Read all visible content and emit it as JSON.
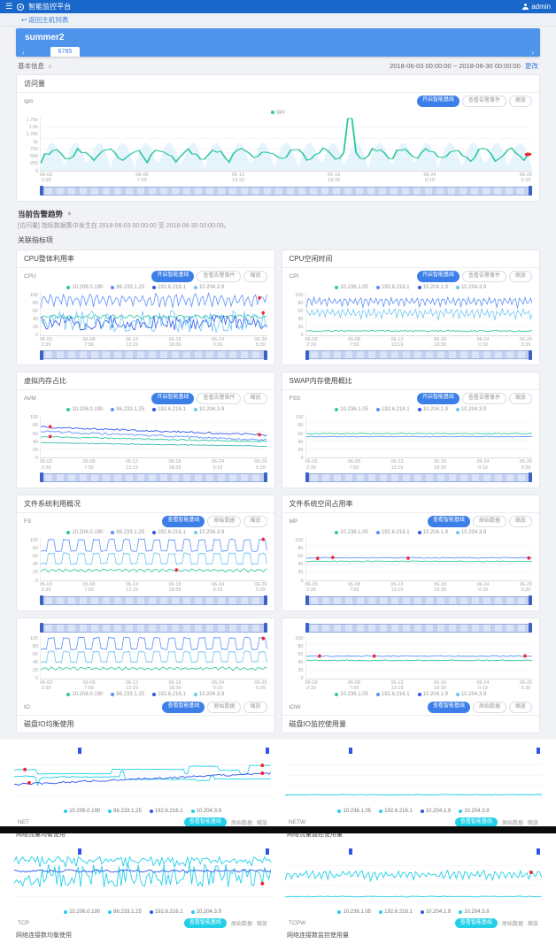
{
  "header": {
    "app_title": "智能监控平台",
    "user": "admin",
    "menu_icon": "☰"
  },
  "breadcrumb": {
    "back_icon": "↩",
    "back_label": "返回主机列表"
  },
  "host_card": {
    "title": "summer2",
    "tab": "6785",
    "arrow_left": "‹",
    "arrow_right": "›"
  },
  "info_row": {
    "label": "基本信息",
    "caret": "∨",
    "date_range": "2018-06-03 00:00:00 ~ 2018-06-30 00:00:00",
    "change_label": "更改"
  },
  "axis": {
    "x_ticks": [
      "06-03\n2:39",
      "06-08\n7:59",
      "06-13\n13:19",
      "06-18\n18:39",
      "06-24\n0:19",
      "06-29\n5:39"
    ],
    "y_ticks_pct": [
      "100",
      "80",
      "60",
      "40",
      "20",
      "0"
    ]
  },
  "main_chart": {
    "title": "访问量",
    "unit": "qps",
    "buttons": [
      "开启智能基线",
      "查看告警事件",
      "缩放"
    ],
    "legend": [
      {
        "name": "qps",
        "color": "#2ec7a0"
      }
    ],
    "y_ticks": [
      "1.75k",
      "1.5k",
      "1.25k",
      "1k",
      "750",
      "500",
      "250",
      "0"
    ],
    "series": [
      {
        "c": "#9ad2f5",
        "t": "wave",
        "b": 0.97,
        "a": 0.5,
        "f": 0.55,
        "n": 0,
        "area": true,
        "op": 0.25,
        "seed": 3
      },
      {
        "c": "#2ec7a0",
        "t": "wave",
        "b": 0.87,
        "a": 0.2,
        "f": 0.48,
        "n": 0.1,
        "spike": 0.63,
        "w": 1,
        "r": [
          0.995
        ],
        "seed": 8
      }
    ]
  },
  "alert_section": {
    "title": "当前告警趋势",
    "caret": "∧",
    "note": "[访问量] 指标数据集中发生在 2018-06-03 00:00:00 至 2018-06-30 00:00:00。",
    "related_label": "关联指标项"
  },
  "panels": [
    {
      "title": "CPU整体利用率",
      "label": "CPU",
      "flipped": false,
      "buttons": [
        "开启智能基线",
        "查看告警事件",
        "缩放"
      ],
      "legend": [
        {
          "name": "10.206.0.190",
          "color": "#2ec7a0"
        },
        {
          "name": "86.233.1.25",
          "color": "#5b8ff9"
        },
        {
          "name": "192.6.216.1",
          "color": "#2f54eb"
        },
        {
          "name": "10.204.3.9",
          "color": "#6ec6f2"
        }
      ],
      "series": [
        {
          "c": "#5b8ff9",
          "t": "wave",
          "b": 0.42,
          "a": 0.28,
          "f": 0.9,
          "n": 0.12,
          "r": [
            0.97
          ],
          "seed": 11
        },
        {
          "c": "#2ec7a0",
          "t": "wave",
          "b": 0.64,
          "a": 0.07,
          "f": 0.7,
          "n": 0.05,
          "seed": 21
        },
        {
          "c": "#2f54eb",
          "t": "noise",
          "b": 0.88,
          "a": 0.35,
          "seed": 31
        },
        {
          "c": "#6ec6f2",
          "t": "noise",
          "b": 0.93,
          "a": 0.5,
          "r": [
            0.985
          ],
          "seed": 41
        }
      ]
    },
    {
      "title": "CPU空闲时间",
      "label": "CPI",
      "flipped": false,
      "buttons": [
        "开启智能基线",
        "查看告警事件",
        "缩放"
      ],
      "legend": [
        {
          "name": "10.236.1.05",
          "color": "#2ec7a0"
        },
        {
          "name": "192.6.216.1",
          "color": "#5b8ff9"
        },
        {
          "name": "10.204.1.9",
          "color": "#2f54eb"
        },
        {
          "name": "10.204.3.9",
          "color": "#6ec6f2"
        }
      ],
      "series": [
        {
          "c": "#5b8ff9",
          "t": "wave",
          "b": 0.38,
          "a": 0.22,
          "f": 1.15,
          "n": 0.04,
          "seed": 12
        },
        {
          "c": "#6ec6f2",
          "t": "wave",
          "b": 0.66,
          "a": 0.22,
          "f": 1.15,
          "n": 0.06,
          "p": 1.2,
          "seed": 22
        },
        {
          "c": "#2ec7a0",
          "t": "flat",
          "b": 0.9,
          "j": 1.5,
          "seed": 32
        }
      ]
    },
    {
      "title": "虚拟内存占比",
      "label": "AVM",
      "flipped": false,
      "buttons": [
        "开启智能基线",
        "查看告警事件",
        "缩放"
      ],
      "legend": [
        {
          "name": "10.206.0.190",
          "color": "#2ec7a0"
        },
        {
          "name": "86.233.1.25",
          "color": "#5b8ff9"
        },
        {
          "name": "192.6.216.1",
          "color": "#2f54eb"
        },
        {
          "name": "10.204.3.9",
          "color": "#6ec6f2"
        }
      ],
      "series": [
        {
          "c": "#2f54eb",
          "t": "trend",
          "b": 0.3,
          "d": 0.18,
          "j": 2,
          "r": [
            0.04,
            0.97
          ],
          "seed": 13
        },
        {
          "c": "#5b8ff9",
          "t": "trend",
          "b": 0.4,
          "d": 0.2,
          "j": 2.5,
          "seed": 23
        },
        {
          "c": "#2ec7a0",
          "t": "trend",
          "b": 0.52,
          "d": 0.12,
          "j": 1.5,
          "r": [
            0.04
          ],
          "seed": 33
        },
        {
          "c": "#35b8b0",
          "t": "trend",
          "b": 0.66,
          "d": 0.08,
          "j": 1,
          "seed": 43
        }
      ]
    },
    {
      "title": "SWAP内存使用概比",
      "label": "FSS",
      "flipped": false,
      "buttons": [
        "开启智能基线",
        "查看告警事件",
        "缩放"
      ],
      "legend": [
        {
          "name": "10.236.1.05",
          "color": "#2ec7a0"
        },
        {
          "name": "192.6.216.1",
          "color": "#5b8ff9"
        },
        {
          "name": "10.204.1.9",
          "color": "#2f54eb"
        },
        {
          "name": "10.204.3.9",
          "color": "#6ec6f2"
        }
      ],
      "series": [
        {
          "c": "#2ec7a0",
          "t": "flat",
          "b": 0.45,
          "j": 1,
          "seed": 14
        },
        {
          "c": "#5b8ff9",
          "t": "flat",
          "b": 0.52,
          "j": 1,
          "seed": 24
        }
      ]
    },
    {
      "title": "文件系统利用概况",
      "label": "FS",
      "flipped": false,
      "buttons": [
        "查看智能基线",
        "原始数据",
        "缩放"
      ],
      "legend": [
        {
          "name": "10.206.0.190",
          "color": "#2ec7a0"
        },
        {
          "name": "86.233.1.25",
          "color": "#5b8ff9"
        },
        {
          "name": "192.6.216.1",
          "color": "#2f54eb"
        },
        {
          "name": "10.204.3.9",
          "color": "#6ec6f2"
        }
      ],
      "series": [
        {
          "c": "#5b8ff9",
          "t": "square",
          "b": 0.32,
          "a": 0.26,
          "f": 30,
          "r": [
            0.985
          ],
          "seed": 15
        },
        {
          "c": "#6ec6f2",
          "t": "square",
          "b": 0.62,
          "a": 0.24,
          "f": 30,
          "seed": 25
        },
        {
          "c": "#2ec7a0",
          "t": "wave",
          "b": 0.82,
          "a": 0.06,
          "f": 0.8,
          "n": 0.03,
          "r": [
            0.6
          ],
          "seed": 35
        }
      ]
    },
    {
      "title": "文件系统空间占用率",
      "label": "MP",
      "flipped": false,
      "buttons": [
        "查看智能基线",
        "原始数据",
        "缩放"
      ],
      "legend": [
        {
          "name": "10.236.1.05",
          "color": "#2ec7a0"
        },
        {
          "name": "192.6.216.1",
          "color": "#5b8ff9"
        },
        {
          "name": "10.204.1.9",
          "color": "#2f54eb"
        },
        {
          "name": "10.204.3.9",
          "color": "#6ec6f2"
        }
      ],
      "series": [
        {
          "c": "#5b8ff9",
          "t": "flat",
          "b": 0.48,
          "j": 1.2,
          "r": [
            0.05,
            0.12,
            0.45,
            0.98
          ],
          "seed": 16
        },
        {
          "c": "#2ec7a0",
          "t": "flat",
          "b": 0.56,
          "j": 1,
          "seed": 26
        }
      ]
    },
    {
      "title": "磁盘IO均衡使用",
      "label": "IO",
      "flipped": true,
      "buttons": [
        "查看智能基线",
        "原始数据",
        "缩放"
      ],
      "legend": [
        {
          "name": "10.206.0.190",
          "color": "#2ec7a0"
        },
        {
          "name": "86.233.1.25",
          "color": "#5b8ff9"
        },
        {
          "name": "192.6.216.1",
          "color": "#2f54eb"
        },
        {
          "name": "10.204.3.9",
          "color": "#6ec6f2"
        }
      ],
      "series": [
        {
          "c": "#5b8ff9",
          "t": "square",
          "b": 0.32,
          "a": 0.26,
          "f": 30,
          "r": [
            0.985
          ],
          "seed": 17
        },
        {
          "c": "#6ec6f2",
          "t": "square",
          "b": 0.62,
          "a": 0.24,
          "f": 30,
          "seed": 27
        },
        {
          "c": "#2ec7a0",
          "t": "wave",
          "b": 0.82,
          "a": 0.06,
          "f": 0.8,
          "n": 0.03,
          "seed": 37
        }
      ]
    },
    {
      "title": "磁盘IO监控使用量",
      "label": "IOW",
      "flipped": true,
      "buttons": [
        "查看智能基线",
        "原始数据",
        "缩放"
      ],
      "legend": [
        {
          "name": "10.236.1.05",
          "color": "#2ec7a0"
        },
        {
          "name": "192.6.216.1",
          "color": "#5b8ff9"
        },
        {
          "name": "10.204.1.9",
          "color": "#2f54eb"
        },
        {
          "name": "10.204.3.9",
          "color": "#6ec6f2"
        }
      ],
      "series": [
        {
          "c": "#5b8ff9",
          "t": "flat",
          "b": 0.48,
          "j": 1.2,
          "r": [
            0.06,
            0.3,
            0.97
          ],
          "seed": 18
        },
        {
          "c": "#2ec7a0",
          "t": "flat",
          "b": 0.58,
          "j": 1,
          "seed": 28
        }
      ]
    }
  ],
  "bottom_charts": [
    {
      "caption": "网络流量均衡使用",
      "label": "NET",
      "button": "查看智能基线",
      "links": [
        "原始数据",
        "缩放"
      ],
      "legend": [
        {
          "name": "10.206.0.190",
          "color": "#22d0e8"
        },
        {
          "name": "86.233.1.25",
          "color": "#22d0e8"
        },
        {
          "name": "192.6.216.1",
          "color": "#2f54eb"
        },
        {
          "name": "10.204.3.9",
          "color": "#22d0e8"
        }
      ],
      "series": [
        {
          "c": "#22d0e8",
          "t": "step",
          "b": 0.22,
          "a": 0.18,
          "r": [
            0.04,
            0.97
          ],
          "seed": 51
        },
        {
          "c": "#22d0e8",
          "t": "step",
          "b": 0.5,
          "a": 0.22,
          "seed": 61
        },
        {
          "c": "#2f54eb",
          "t": "trend",
          "b": 0.58,
          "d": -0.22,
          "j": 2.5,
          "r": [
            0.06,
            0.97
          ],
          "seed": 71
        }
      ]
    },
    {
      "caption": "网络流量监控使用量",
      "label": "NETW",
      "button": "查看智能基线",
      "links": [
        "原始数据",
        "缩放"
      ],
      "legend": [
        {
          "name": "10.236.1.05",
          "color": "#22d0e8"
        },
        {
          "name": "192.6.216.1",
          "color": "#22d0e8"
        },
        {
          "name": "10.204.1.9",
          "color": "#2f54eb"
        },
        {
          "name": "10.204.3.9",
          "color": "#22d0e8"
        }
      ],
      "series": [
        {
          "c": "#22d0e8",
          "t": "flat",
          "b": 0.78,
          "j": 0.8,
          "seed": 52
        }
      ]
    },
    {
      "caption": "网络连接数均衡使用",
      "label": "TCP",
      "button": "查看智能基线",
      "links": [
        "原始数据",
        "缩放"
      ],
      "legend": [
        {
          "name": "10.206.0.190",
          "color": "#22d0e8"
        },
        {
          "name": "86.233.1.25",
          "color": "#22d0e8"
        },
        {
          "name": "192.6.216.1",
          "color": "#2f54eb"
        },
        {
          "name": "10.204.3.9",
          "color": "#22d0e8"
        }
      ],
      "series": [
        {
          "c": "#22d0e8",
          "t": "wave",
          "b": 0.25,
          "a": 0.12,
          "f": 1.3,
          "n": 0.15,
          "seed": 53
        },
        {
          "c": "#22d0e8",
          "t": "noise",
          "b": 0.62,
          "a": 0.45,
          "r": [
            0.97
          ],
          "seed": 63
        },
        {
          "c": "#2f54eb",
          "t": "flat",
          "b": 0.3,
          "j": 3,
          "seed": 73
        }
      ]
    },
    {
      "caption": "网络连接数监控使用量",
      "label": "TCPW",
      "button": "查看智能基线",
      "links": [
        "原始数据",
        "缩放"
      ],
      "legend": [
        {
          "name": "10.236.1.05",
          "color": "#22d0e8"
        },
        {
          "name": "192.6.216.1",
          "color": "#22d0e8"
        },
        {
          "name": "10.204.1.9",
          "color": "#2f54eb"
        },
        {
          "name": "10.204.3.9",
          "color": "#22d0e8"
        }
      ],
      "series": [
        {
          "c": "#22d0e8",
          "t": "wave",
          "b": 0.5,
          "a": 0.14,
          "f": 1.1,
          "n": 0.08,
          "r": [
            0.96
          ],
          "seed": 54
        },
        {
          "c": "#22d0e8",
          "t": "flat",
          "b": 0.8,
          "j": 1,
          "seed": 64
        }
      ]
    }
  ],
  "colors": {
    "navbar": "#1a67cc",
    "card": "#4d94ea",
    "accent": "#3d7fe8",
    "cyan": "#22d0e8",
    "alert": "#f5222d",
    "teal": "#2ec7a0",
    "blue": "#5b8ff9"
  }
}
